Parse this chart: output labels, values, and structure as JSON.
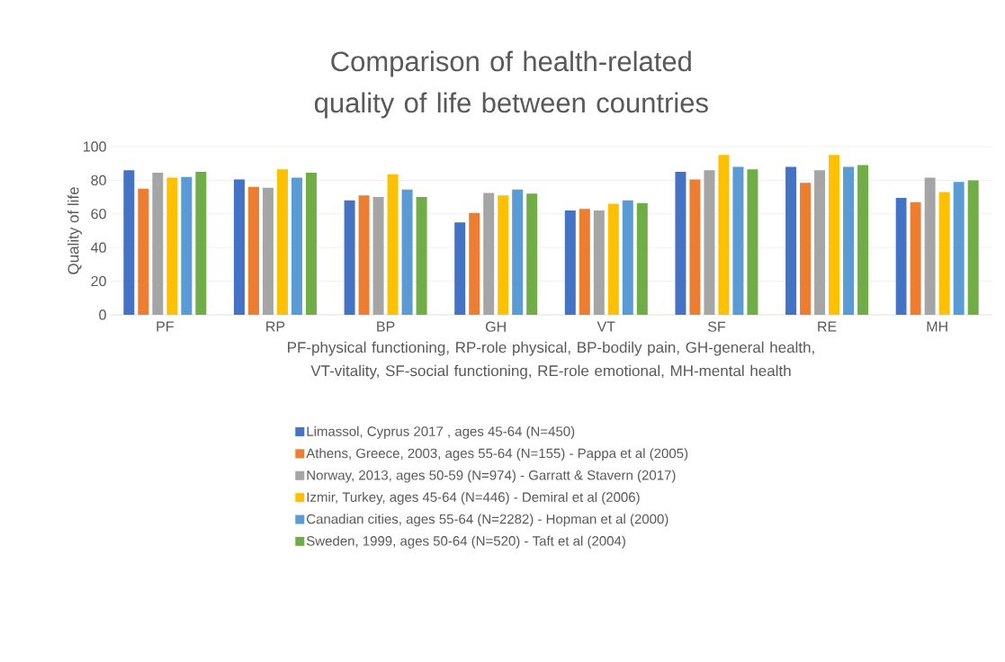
{
  "chart_data": {
    "type": "bar",
    "title": "Comparison of health-related quality of life between countries",
    "xlabel": "PF-physical functioning, RP-role physical, BP-bodily pain, GH-general health, VT-vitality, SF-social functioning, RE-role emotional, MH-mental health",
    "ylabel": "Quality of life",
    "categories": [
      "PF",
      "RP",
      "BP",
      "GH",
      "VT",
      "SF",
      "RE",
      "MH"
    ],
    "series": [
      {
        "name": "Limassol, Cyprus 2017 , ages 45-64 (N=450)",
        "color": "#4472c4",
        "values": [
          86,
          80.5,
          68,
          55,
          62,
          85,
          88,
          69.5
        ]
      },
      {
        "name": "Athens, Greece, 2003, ages 55-64 (N=155) - Pappa et al (2005)",
        "color": "#ed7d31",
        "values": [
          75,
          76,
          71,
          60.5,
          63,
          80.5,
          78.5,
          67
        ]
      },
      {
        "name": "Norway, 2013, ages 50-59 (N=974) - Garratt & Stavern (2017)",
        "color": "#a5a5a5",
        "values": [
          84.5,
          75.5,
          70,
          72.5,
          62,
          86,
          86,
          81.5
        ]
      },
      {
        "name": "Izmir, Turkey, ages 45-64 (N=446) - Demiral et al (2006)",
        "color": "#ffc000",
        "values": [
          81.5,
          86.5,
          83.5,
          71,
          66,
          95,
          95,
          73
        ]
      },
      {
        "name": "Canadian cities, ages 55-64 (N=2282) - Hopman et al (2000)",
        "color": "#5b9bd5",
        "values": [
          82,
          81.5,
          74.5,
          74.5,
          68,
          88,
          88,
          79
        ]
      },
      {
        "name": "Sweden, 1999, ages 50-64 (N=520) - Taft et al (2004)",
        "color": "#70ad47",
        "values": [
          85,
          84.5,
          70,
          72,
          66.5,
          86.5,
          89,
          80
        ]
      }
    ],
    "ylim": [
      0,
      100
    ],
    "yticks": [
      0,
      20,
      40,
      60,
      80,
      100
    ],
    "grid": "y",
    "legend": "bottom"
  }
}
